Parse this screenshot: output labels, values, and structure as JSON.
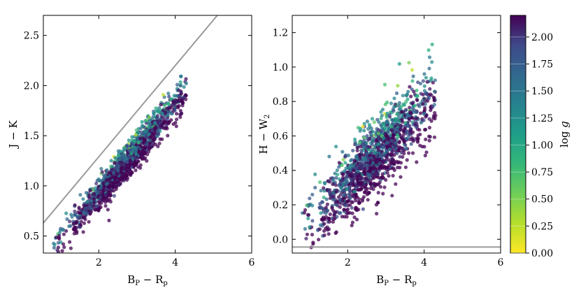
{
  "chart_data": [
    {
      "type": "scatter",
      "xlabel": "B_P − R_p",
      "ylabel": "J − K",
      "xlim": [
        0.55,
        6.0
      ],
      "ylim": [
        0.33,
        2.7
      ],
      "xticks": [
        "2",
        "4",
        "6"
      ],
      "yticks": [
        "0.5",
        "1.0",
        "1.5",
        "2.0",
        "2.5"
      ],
      "reference_line": {
        "x": [
          0.55,
          5.1
        ],
        "y": [
          0.63,
          2.7
        ]
      },
      "point_cloud": {
        "x_range": [
          0.8,
          4.3
        ],
        "trend": {
          "slope": 0.45,
          "intercept": 0.01
        },
        "scatter": 0.09
      },
      "grid": false
    },
    {
      "type": "scatter",
      "xlabel": "B_P − R_p",
      "ylabel": "H − W_2",
      "xlim": [
        0.55,
        6.0
      ],
      "ylim": [
        -0.08,
        1.3
      ],
      "xticks": [
        "2",
        "4",
        "6"
      ],
      "yticks": [
        "0.0",
        "0.2",
        "0.4",
        "0.6",
        "0.8",
        "1.0",
        "1.2"
      ],
      "reference_line": {
        "x": [
          0.55,
          6.0
        ],
        "y": [
          -0.045,
          -0.045
        ]
      },
      "point_cloud": {
        "x_range": [
          0.8,
          4.3
        ],
        "trend": {
          "slope": 0.22,
          "intercept": -0.12
        },
        "scatter": 0.11
      },
      "grid": false
    }
  ],
  "colorbar": {
    "label": "log g",
    "range": [
      0.0,
      2.2
    ],
    "ticks": [
      "0.00",
      "0.25",
      "0.50",
      "0.75",
      "1.00",
      "1.25",
      "1.50",
      "1.75",
      "2.00"
    ],
    "colormap": "viridis"
  }
}
